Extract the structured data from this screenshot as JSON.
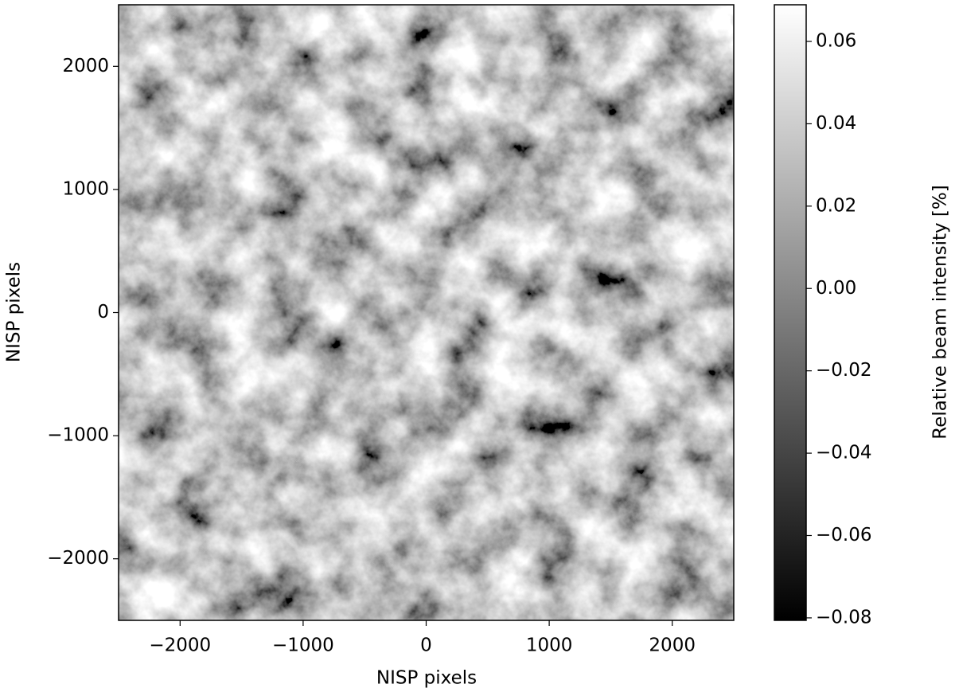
{
  "chart_data": {
    "type": "image",
    "xlabel": "NISP pixels",
    "ylabel": "NISP pixels",
    "xlim": [
      -2500,
      2500
    ],
    "ylim": [
      -2500,
      2500
    ],
    "xticks": [
      {
        "value": -2000,
        "label": "−2000"
      },
      {
        "value": -1000,
        "label": "−1000"
      },
      0,
      1000,
      2000
    ],
    "yticks": [
      {
        "value": -2000,
        "label": "−2000"
      },
      {
        "value": -1000,
        "label": "−1000"
      },
      0,
      1000,
      2000
    ],
    "colormap": "gray",
    "colorbar": {
      "label": "Relative beam intensity [%]",
      "clim": [
        -0.0806,
        0.0689
      ],
      "ticks": [
        {
          "value": -0.08,
          "label": "−0.08"
        },
        {
          "value": -0.06,
          "label": "−0.06"
        },
        {
          "value": -0.04,
          "label": "−0.04"
        },
        {
          "value": -0.02,
          "label": "−0.02"
        },
        {
          "value": 0,
          "label": "0.00"
        },
        0.02,
        0.04,
        0.06
      ]
    }
  }
}
